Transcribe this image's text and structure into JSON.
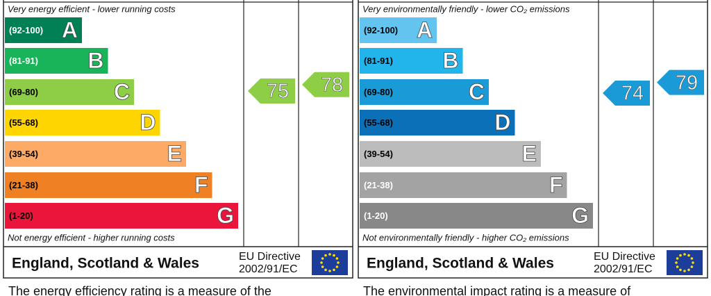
{
  "panels": [
    {
      "top_note": "Very energy efficient - lower running costs",
      "bottom_note": "Not energy efficient - higher running costs",
      "bands": [
        {
          "range": "(92-100)",
          "letter": "A",
          "color": "#008054",
          "text_color": "#ffffff"
        },
        {
          "range": "(81-91)",
          "letter": "B",
          "color": "#19b459",
          "text_color": "#ffffff"
        },
        {
          "range": "(69-80)",
          "letter": "C",
          "color": "#8dce46",
          "text_color": "#000000"
        },
        {
          "range": "(55-68)",
          "letter": "D",
          "color": "#ffd500",
          "text_color": "#000000"
        },
        {
          "range": "(39-54)",
          "letter": "E",
          "color": "#fcaa65",
          "text_color": "#000000"
        },
        {
          "range": "(21-38)",
          "letter": "F",
          "color": "#ef8023",
          "text_color": "#000000"
        },
        {
          "range": "(1-20)",
          "letter": "G",
          "color": "#e9153b",
          "text_color": "#000000"
        }
      ],
      "current": 75,
      "potential": 78,
      "region": "England, Scotland & Wales",
      "directive": "EU Directive",
      "directive_code": "2002/91/EC",
      "description": "The energy efficiency rating is a measure of the"
    },
    {
      "top_note": "Very environmentally friendly - lower CO₂ emissions",
      "bottom_note": "Not environmentally friendly - higher CO₂ emissions",
      "bands": [
        {
          "range": "(92-100)",
          "letter": "A",
          "color": "#63c5ef",
          "text_color": "#000000"
        },
        {
          "range": "(81-91)",
          "letter": "B",
          "color": "#22b5eb",
          "text_color": "#000000"
        },
        {
          "range": "(69-80)",
          "letter": "C",
          "color": "#1a9ad6",
          "text_color": "#000000"
        },
        {
          "range": "(55-68)",
          "letter": "D",
          "color": "#0b70b8",
          "text_color": "#000000"
        },
        {
          "range": "(39-54)",
          "letter": "E",
          "color": "#bcbcbc",
          "text_color": "#000000"
        },
        {
          "range": "(21-38)",
          "letter": "F",
          "color": "#a3a3a3",
          "text_color": "#ffffff"
        },
        {
          "range": "(1-20)",
          "letter": "G",
          "color": "#888888",
          "text_color": "#ffffff"
        }
      ],
      "current": 74,
      "potential": 79,
      "region": "England, Scotland & Wales",
      "directive": "EU Directive",
      "directive_code": "2002/91/EC",
      "description": "The environmental impact rating is a measure of"
    }
  ]
}
